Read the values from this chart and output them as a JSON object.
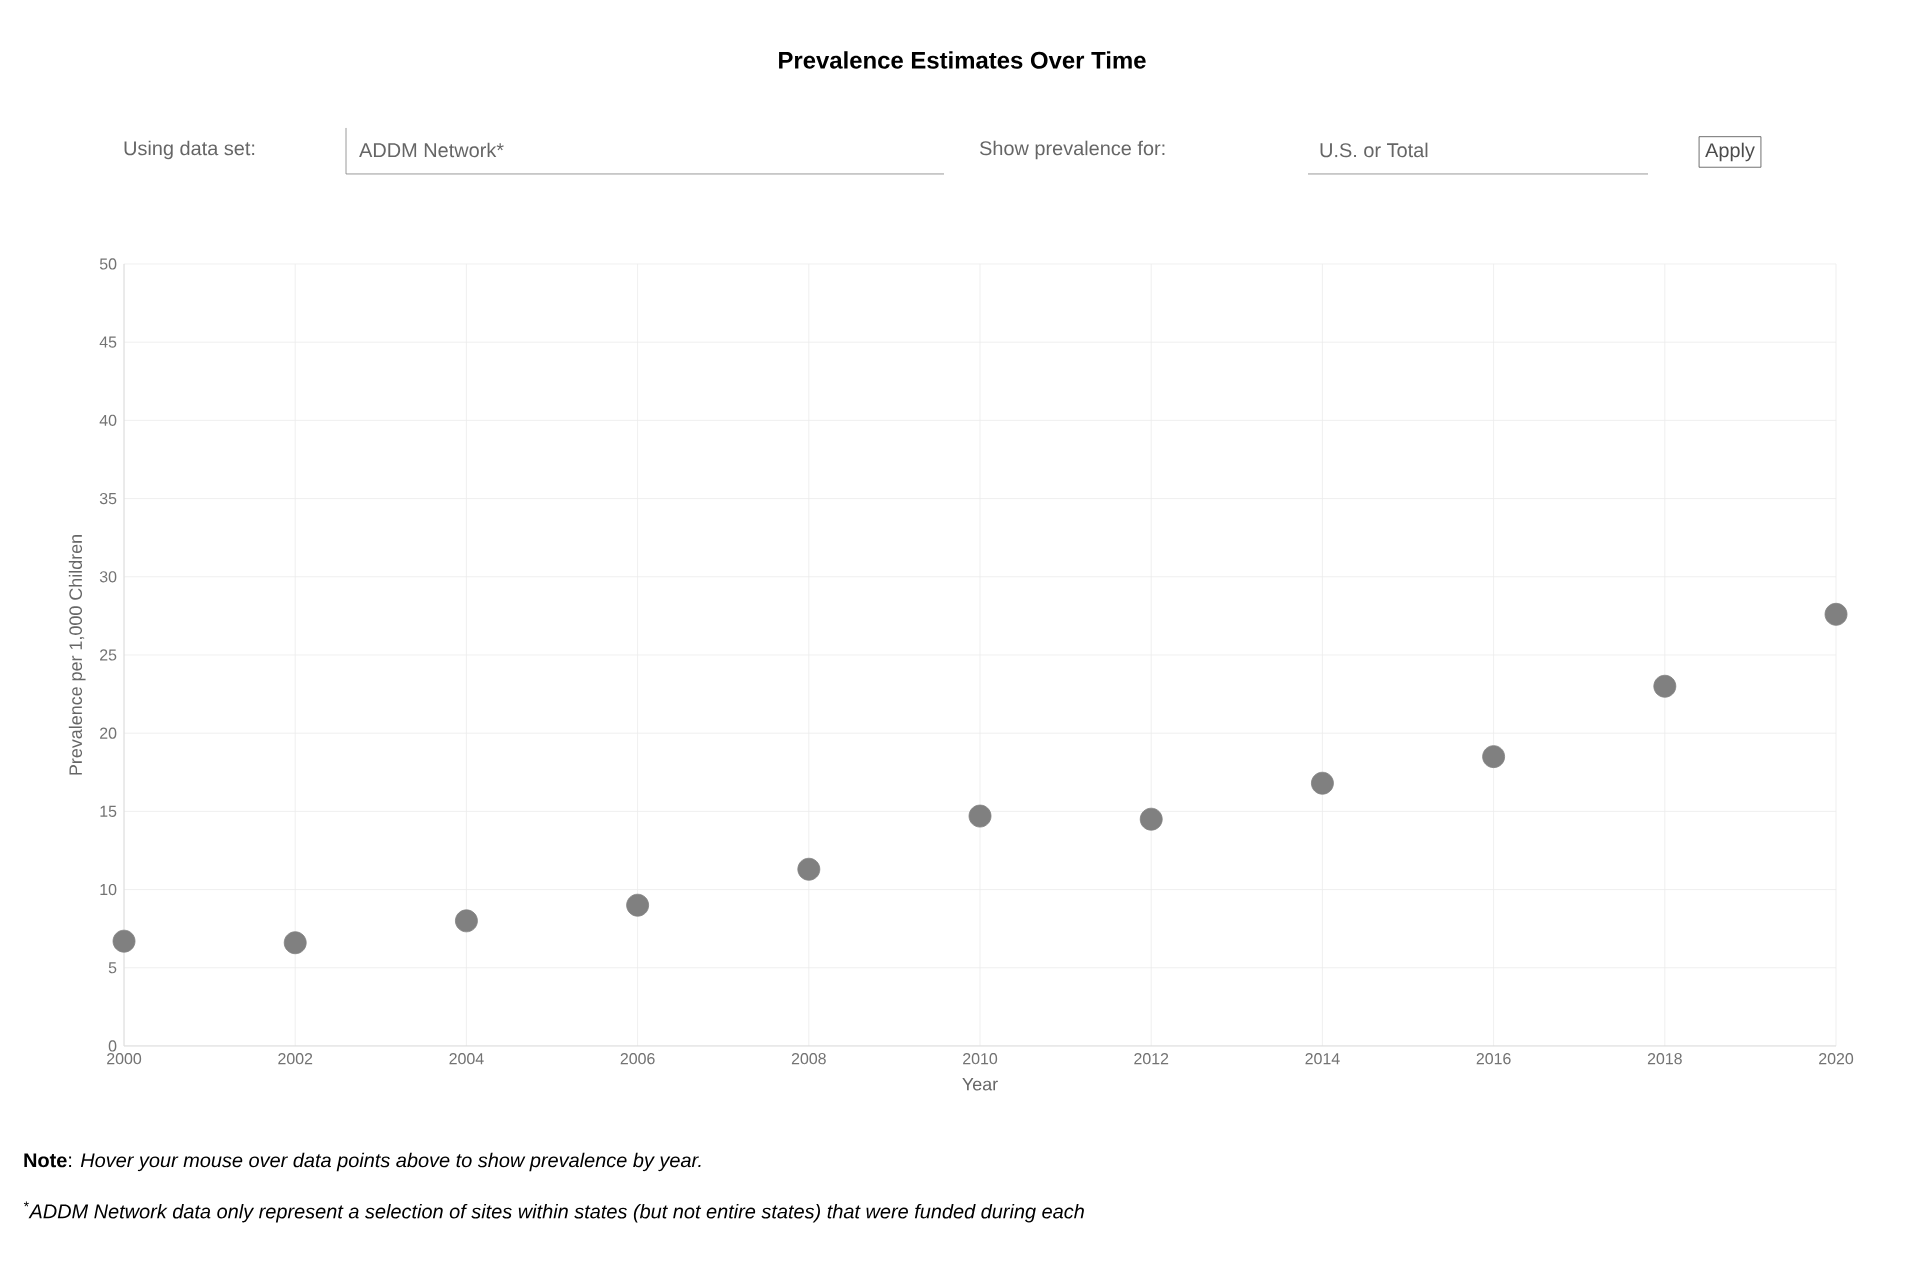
{
  "chart_data": {
    "type": "scatter",
    "title": "Prevalence Estimates Over Time",
    "xlabel": "Year",
    "ylabel": "Prevalence per 1,000 Children",
    "annotations": [
      "Using data set:",
      "ADDM Network*",
      "Show prevalence for:",
      "U.S. or Total",
      "Apply",
      "**Note**: *Hover your mouse over data points above to show prevalence by year.*",
      "$^{*}$ADDM Network data only represent a selection of sites within states (but not entire states) that were funded during each"
    ],
    "x": [
      2000,
      2002,
      2004,
      2006,
      2008,
      2010,
      2012,
      2014,
      2016,
      2018,
      2020
    ],
    "series": [
      {
        "color": "#808080",
        "values": [
          6.7,
          6.6,
          8.0,
          9.0,
          11.3,
          14.7,
          14.5,
          16.8,
          18.5,
          23.0,
          27.6
        ]
      }
    ],
    "xlim": [
      2000,
      2020
    ],
    "ylim": [
      0,
      50
    ],
    "xticks": [
      2000,
      2002,
      2004,
      2006,
      2008,
      2010,
      2012,
      2014,
      2016,
      2018,
      2020
    ],
    "yticks": [
      0,
      5,
      10,
      15,
      20,
      25,
      30,
      35,
      40,
      45,
      50
    ],
    "grid": true,
    "marker": "circle"
  }
}
